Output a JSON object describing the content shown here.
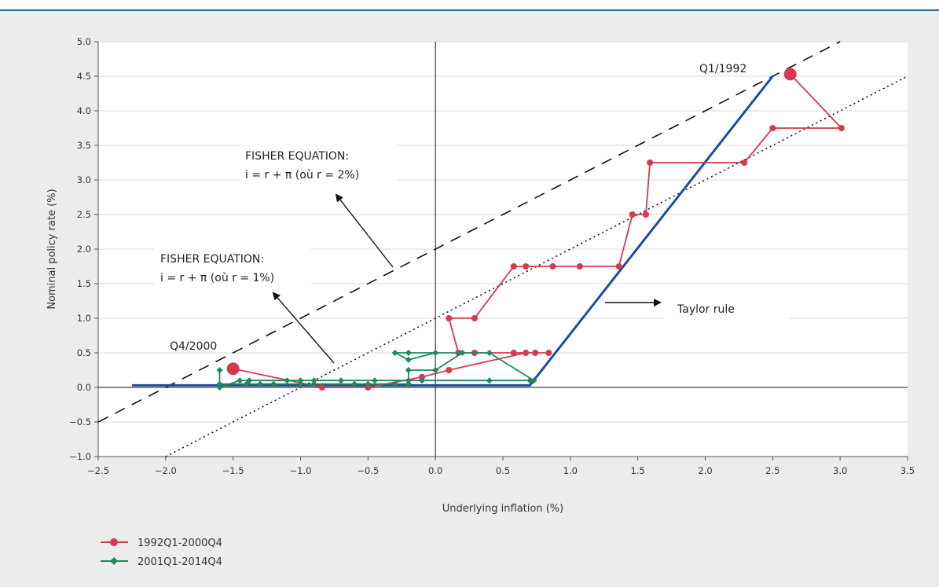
{
  "chart_data": {
    "type": "line",
    "xlabel": "Underlying inflation (%)",
    "ylabel": "Nominal policy rate (%)",
    "xlim": [
      -2.5,
      3.5
    ],
    "ylim": [
      -1.0,
      5.0
    ],
    "x_ticks": [
      "−2.5",
      "−2.0",
      "−1.5",
      "−1.0",
      "−0.5",
      "0.0",
      "0.5",
      "1.0",
      "1.5",
      "2.0",
      "2.5",
      "3.0",
      "3.5"
    ],
    "y_ticks": [
      "5.0",
      "4.5",
      "4.0",
      "3.5",
      "3.0",
      "2.5",
      "2.0",
      "1.5",
      "1.0",
      "0.5",
      "0.0",
      "−0.5",
      "−1.0"
    ],
    "grid": true,
    "legend_position": "bottom-left",
    "series": [
      {
        "name": "1992Q1-2000Q4",
        "color": "#d6384f",
        "marker": "circle",
        "points": [
          [
            2.63,
            4.53
          ],
          [
            3.01,
            3.75
          ],
          [
            2.5,
            3.75
          ],
          [
            2.29,
            3.25
          ],
          [
            1.59,
            3.25
          ],
          [
            1.56,
            2.5
          ],
          [
            1.46,
            2.5
          ],
          [
            1.36,
            1.75
          ],
          [
            1.07,
            1.75
          ],
          [
            0.87,
            1.75
          ],
          [
            0.67,
            1.75
          ],
          [
            0.58,
            1.75
          ],
          [
            0.29,
            1.0
          ],
          [
            0.1,
            1.0
          ],
          [
            0.17,
            0.5
          ],
          [
            0.29,
            0.5
          ],
          [
            0.58,
            0.5
          ],
          [
            0.74,
            0.5
          ],
          [
            0.84,
            0.5
          ],
          [
            0.67,
            0.5
          ],
          [
            0.1,
            0.25
          ],
          [
            -0.1,
            0.15
          ],
          [
            -0.5,
            0.0
          ],
          [
            -0.84,
            0.0
          ],
          [
            -1.5,
            0.27
          ]
        ],
        "highlight_points": [
          [
            2.63,
            4.53
          ],
          [
            -1.5,
            0.27
          ]
        ]
      },
      {
        "name": "2001Q1-2014Q4",
        "color": "#1f8a5a",
        "marker": "diamond",
        "points": [
          [
            -1.6,
            0.25
          ],
          [
            -1.6,
            0.0
          ],
          [
            -1.45,
            0.1
          ],
          [
            -1.38,
            0.1
          ],
          [
            -1.1,
            0.1
          ],
          [
            -1.0,
            0.1
          ],
          [
            -0.9,
            0.1
          ],
          [
            -0.7,
            0.1
          ],
          [
            -0.45,
            0.1
          ],
          [
            -0.2,
            0.1
          ],
          [
            -0.1,
            0.1
          ],
          [
            0.4,
            0.1
          ],
          [
            0.7,
            0.1
          ],
          [
            0.73,
            0.1
          ],
          [
            0.4,
            0.5
          ],
          [
            -0.2,
            0.5
          ],
          [
            -0.3,
            0.5
          ],
          [
            -0.2,
            0.4
          ],
          [
            0.0,
            0.5
          ],
          [
            0.2,
            0.5
          ],
          [
            0.0,
            0.25
          ],
          [
            -0.2,
            0.25
          ],
          [
            -0.2,
            0.05
          ],
          [
            -0.3,
            0.05
          ],
          [
            -0.5,
            0.05
          ],
          [
            -0.6,
            0.05
          ],
          [
            -0.9,
            0.05
          ],
          [
            -1.0,
            0.05
          ],
          [
            -1.2,
            0.05
          ],
          [
            -1.3,
            0.05
          ],
          [
            -1.4,
            0.05
          ],
          [
            -1.6,
            0.05
          ]
        ]
      }
    ],
    "lines": [
      {
        "name": "Fisher r = 2%",
        "style": "dashed",
        "color": "#111111",
        "x": [
          -2.5,
          3.0
        ],
        "y": [
          -0.5,
          5.0
        ]
      },
      {
        "name": "Fisher r = 1%",
        "style": "dotted",
        "color": "#111111",
        "x": [
          -2.0,
          3.5
        ],
        "y": [
          -1.0,
          4.5
        ]
      },
      {
        "name": "Taylor rule",
        "style": "solid",
        "color": "#1c4e9a",
        "x": [
          -2.25,
          0.7,
          2.5
        ],
        "y": [
          0.03,
          0.03,
          4.5
        ]
      }
    ],
    "annotations": {
      "q1_1992": "Q1/1992",
      "q4_2000": "Q4/2000",
      "fisher2_line1": "FISHER EQUATION:",
      "fisher2_line2": "i = r + π (où r = 2%)",
      "fisher1_line1": "FISHER EQUATION:",
      "fisher1_line2": "i = r + π (où r = 1%)",
      "taylor": "Taylor rule"
    }
  }
}
